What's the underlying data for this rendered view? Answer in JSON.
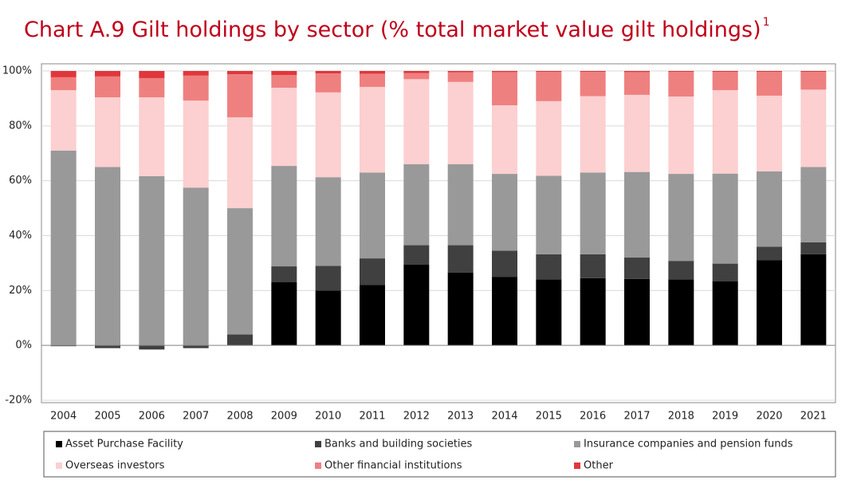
{
  "chart_data": {
    "type": "stacked-bar",
    "title": "Chart A.9 Gilt holdings by sector (% total market value gilt holdings)",
    "title_superscript": "1",
    "categories": [
      "2004",
      "2005",
      "2006",
      "2007",
      "2008",
      "2009",
      "2010",
      "2011",
      "2012",
      "2013",
      "2014",
      "2015",
      "2016",
      "2017",
      "2018",
      "2019",
      "2020",
      "2021"
    ],
    "series": [
      {
        "name": "Asset Purchase Facility",
        "color": "#000000",
        "values": [
          0,
          0,
          0,
          0,
          0,
          23,
          20,
          22,
          29.5,
          26.5,
          25,
          24,
          24.5,
          24.2,
          24,
          23.4,
          31,
          33.2
        ]
      },
      {
        "name": "Banks and building societies",
        "color": "#404040",
        "values": [
          -0.3,
          -1,
          -1.5,
          -1,
          4,
          5.8,
          9,
          9.7,
          7,
          10,
          9.5,
          9.2,
          8.7,
          7.8,
          6.8,
          6.4,
          5,
          4.4
        ]
      },
      {
        "name": "Insurance companies and pension funds",
        "color": "#999999",
        "values": [
          71,
          65,
          61.7,
          57.5,
          46,
          36.6,
          32.3,
          31.3,
          29.5,
          29.5,
          28,
          28.6,
          29.8,
          31.2,
          31.7,
          32.8,
          27.4,
          27.4
        ]
      },
      {
        "name": "Overseas investors",
        "color": "#fccfd0",
        "values": [
          22,
          25.4,
          28.7,
          31.7,
          33.1,
          28.5,
          30.9,
          31.2,
          31,
          30,
          25,
          27.2,
          27.8,
          28.1,
          28.2,
          30.4,
          27.6,
          28.2
        ]
      },
      {
        "name": "Other financial institutions",
        "color": "#ef8080",
        "values": [
          4.7,
          7.6,
          7,
          9.1,
          15.7,
          4.6,
          6.9,
          4.8,
          2.2,
          3.5,
          12.1,
          10.7,
          8.9,
          8.3,
          9,
          6.7,
          8.7,
          6.5
        ]
      },
      {
        "name": "Other",
        "color": "#e0373c",
        "values": [
          2.3,
          2,
          2.6,
          1.7,
          1.2,
          1.5,
          0.9,
          1,
          0.8,
          0.5,
          0.4,
          0.3,
          0.3,
          0.4,
          0.3,
          0.3,
          0.3,
          0.3
        ]
      }
    ],
    "ylim": [
      -20,
      100
    ],
    "yticks": [
      {
        "value": -20,
        "label": "-20%"
      },
      {
        "value": 0,
        "label": "0%"
      },
      {
        "value": 20,
        "label": "20%"
      },
      {
        "value": 40,
        "label": "40%"
      },
      {
        "value": 60,
        "label": "60%"
      },
      {
        "value": 80,
        "label": "80%"
      },
      {
        "value": 100,
        "label": "100%"
      }
    ],
    "grid": true
  }
}
